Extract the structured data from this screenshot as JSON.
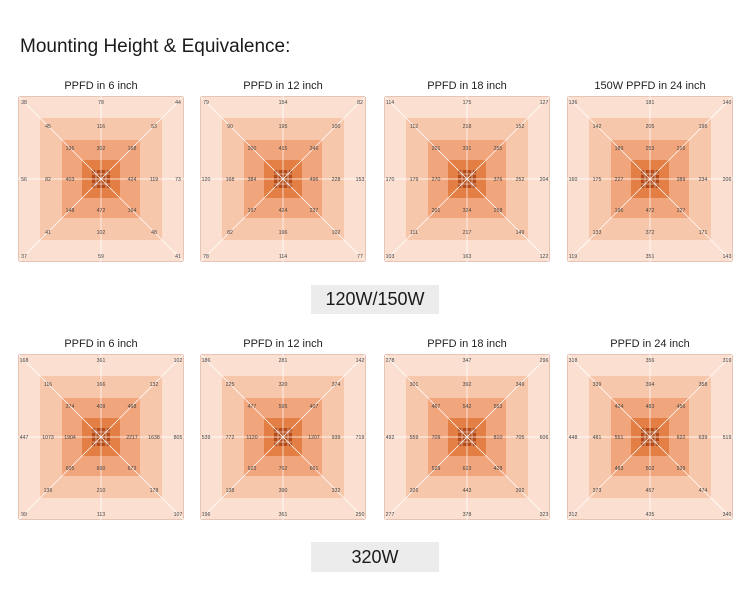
{
  "title": "Mounting Height & Equivalence:",
  "groups": [
    {
      "label": "120W/150W",
      "panels": [
        {
          "label": "PPFD in 6 inch",
          "outer": {
            "corners": [
              "38",
              "44",
              "41",
              "37"
            ],
            "mids": [
              "78",
              "73",
              "59",
              "56"
            ]
          },
          "mid": {
            "corners": [
              "45",
              "53",
              "48",
              "41"
            ],
            "mids": [
              "116",
              "119",
              "102",
              "82"
            ]
          },
          "inner": {
            "corners": [
              "136",
              "168",
              "164",
              "148"
            ],
            "mids": [
              "302",
              "424",
              "472",
              "403"
            ]
          },
          "core": {
            "corners": [
              "",
              "",
              "",
              ""
            ],
            "mids": [
              "",
              "",
              "",
              ""
            ]
          }
        },
        {
          "label": "PPFD in 12 inch",
          "outer": {
            "corners": [
              "79",
              "82",
              "77",
              "78"
            ],
            "mids": [
              "154",
              "153",
              "114",
              "120"
            ]
          },
          "mid": {
            "corners": [
              "90",
              "100",
              "102",
              "82"
            ],
            "mids": [
              "195",
              "228",
              "196",
              "168"
            ]
          },
          "inner": {
            "corners": [
              "200",
              "246",
              "237",
              "197"
            ],
            "mids": [
              "415",
              "496",
              "424",
              "384"
            ]
          },
          "core": {
            "corners": [
              "",
              "",
              "",
              ""
            ],
            "mids": [
              "",
              "",
              "",
              ""
            ]
          }
        },
        {
          "label": "PPFD in 18 inch",
          "outer": {
            "corners": [
              "114",
              "127",
              "122",
              "103"
            ],
            "mids": [
              "175",
              "204",
              "163",
              "170"
            ]
          },
          "mid": {
            "corners": [
              "112",
              "152",
              "149",
              "111"
            ],
            "mids": [
              "218",
              "252",
              "217",
              "179"
            ]
          },
          "inner": {
            "corners": [
              "201",
              "255",
              "258",
              "201"
            ],
            "mids": [
              "331",
              "376",
              "324",
              "270"
            ]
          },
          "core": {
            "corners": [
              "",
              "",
              "",
              ""
            ],
            "mids": [
              "",
              "",
              "",
              ""
            ]
          }
        },
        {
          "label": "150W PPFD in 24 inch",
          "outer": {
            "corners": [
              "136",
              "140",
              "143",
              "119"
            ],
            "mids": [
              "181",
              "206",
              "351",
              "160"
            ]
          },
          "mid": {
            "corners": [
              "142",
              "195",
              "171",
              "133"
            ],
            "mids": [
              "205",
              "234",
              "372",
              "175"
            ]
          },
          "inner": {
            "corners": [
              "189",
              "216",
              "227",
              "196"
            ],
            "mids": [
              "253",
              "289",
              "472",
              "227"
            ]
          },
          "core": {
            "corners": [
              "",
              "",
              "",
              ""
            ],
            "mids": [
              "",
              "",
              "",
              ""
            ]
          }
        }
      ]
    },
    {
      "label": "320W",
      "panels": [
        {
          "label": "PPFD in 6  inch",
          "outer": {
            "corners": [
              "168",
              "102",
              "107",
              "99"
            ],
            "mids": [
              "361",
              "805",
              "113",
              "447"
            ]
          },
          "mid": {
            "corners": [
              "116",
              "132",
              "178",
              "136"
            ],
            "mids": [
              "166",
              "1638",
              "210",
              "1073"
            ]
          },
          "inner": {
            "corners": [
              "374",
              "468",
              "673",
              "605"
            ],
            "mids": [
              "409",
              "2217",
              "690",
              "1904"
            ]
          },
          "core": {
            "corners": [
              "",
              "",
              "",
              ""
            ],
            "mids": [
              "",
              "",
              "",
              ""
            ]
          }
        },
        {
          "label": "PPFD in 12 inch",
          "outer": {
            "corners": [
              "186",
              "142",
              "250",
              "196"
            ],
            "mids": [
              "281",
              "719",
              "361",
              "539"
            ]
          },
          "mid": {
            "corners": [
              "225",
              "374",
              "332",
              "138"
            ],
            "mids": [
              "320",
              "939",
              "390",
              "772"
            ]
          },
          "inner": {
            "corners": [
              "477",
              "407",
              "661",
              "623"
            ],
            "mids": [
              "595",
              "1207",
              "762",
              "1120"
            ]
          },
          "core": {
            "corners": [
              "",
              "",
              "",
              ""
            ],
            "mids": [
              "",
              "",
              "",
              ""
            ]
          }
        },
        {
          "label": "PPFD in 18 inch",
          "outer": {
            "corners": [
              "278",
              "296",
              "323",
              "277"
            ],
            "mids": [
              "347",
              "606",
              "378",
              "492"
            ]
          },
          "mid": {
            "corners": [
              "301",
              "349",
              "392",
              "326"
            ],
            "mids": [
              "392",
              "705",
              "443",
              "559"
            ]
          },
          "inner": {
            "corners": [
              "467",
              "553",
              "428",
              "529"
            ],
            "mids": [
              "542",
              "810",
              "623",
              "709"
            ]
          },
          "core": {
            "corners": [
              "",
              "",
              "",
              ""
            ],
            "mids": [
              "",
              "",
              "",
              ""
            ]
          }
        },
        {
          "label": "PPFD in 24 inch",
          "outer": {
            "corners": [
              "318",
              "319",
              "340",
              "312"
            ],
            "mids": [
              "356",
              "519",
              "435",
              "448"
            ]
          },
          "mid": {
            "corners": [
              "339",
              "358",
              "474",
              "373"
            ],
            "mids": [
              "394",
              "639",
              "457",
              "481"
            ]
          },
          "inner": {
            "corners": [
              "424",
              "456",
              "539",
              "483"
            ],
            "mids": [
              "483",
              "622",
              "502",
              "551"
            ]
          },
          "core": {
            "corners": [
              "",
              "",
              "",
              ""
            ],
            "mids": [
              "",
              "",
              "",
              ""
            ]
          }
        }
      ]
    }
  ],
  "colors": {
    "ring_outer": "#fbe0d2",
    "ring_mid": "#f7c7ab",
    "ring_inner": "#f1a57c",
    "ring_core": "#e37e45",
    "ring_center": "#b54a16",
    "line": "#ffffff",
    "text": "#444444"
  }
}
